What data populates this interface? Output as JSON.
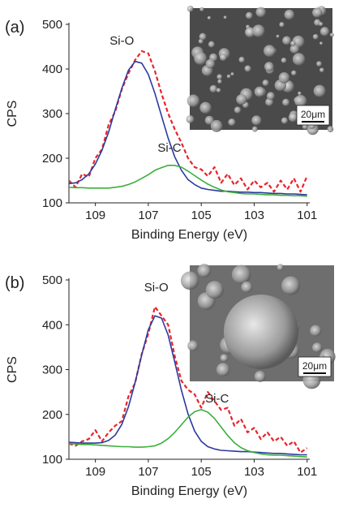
{
  "chart_data": [
    {
      "type": "line",
      "panel_label": "(a)",
      "x_label": "Binding Energy (eV)",
      "y_label": "CPS",
      "xlim": [
        110,
        100.9
      ],
      "ylim": [
        100,
        500
      ],
      "xticks": [
        109,
        107,
        105,
        103,
        101
      ],
      "yticks": [
        100,
        200,
        300,
        400,
        500
      ],
      "x": [
        110,
        109.75,
        109.5,
        109.25,
        109,
        108.75,
        108.5,
        108.25,
        108,
        107.75,
        107.5,
        107.25,
        107,
        106.75,
        106.5,
        106.25,
        106,
        105.75,
        105.5,
        105.25,
        105,
        104.75,
        104.5,
        104.25,
        104,
        103.75,
        103.5,
        103.25,
        103,
        102.75,
        102.5,
        102.25,
        102,
        101.75,
        101.5,
        101.25,
        101
      ],
      "series": [
        {
          "color": "#e8242a",
          "line_style": "dashed",
          "values": [
            150,
            135,
            165,
            158,
            200,
            220,
            275,
            305,
            355,
            390,
            420,
            440,
            435,
            395,
            345,
            300,
            265,
            235,
            200,
            180,
            175,
            160,
            180,
            145,
            165,
            140,
            155,
            130,
            150,
            135,
            145,
            125,
            150,
            130,
            155,
            125,
            160
          ]
        },
        {
          "color": "#2b3a9e",
          "line_style": "solid",
          "values": [
            143,
            145,
            152,
            165,
            187,
            218,
            259,
            309,
            357,
            397,
            417,
            413,
            388,
            345,
            295,
            245,
            203,
            173,
            152,
            141,
            133,
            130,
            128,
            126,
            126,
            125,
            124,
            124,
            123,
            123,
            122,
            121,
            121,
            120,
            120,
            119,
            118
          ]
        },
        {
          "color": "#3cae3c",
          "line_style": "solid",
          "values": [
            135,
            134,
            134,
            133,
            133,
            133,
            133,
            135,
            137,
            141,
            147,
            155,
            163,
            173,
            179,
            184,
            184,
            180,
            171,
            161,
            151,
            142,
            135,
            129,
            125,
            123,
            121,
            120,
            120,
            119,
            118,
            118,
            117,
            117,
            116,
            116,
            115
          ]
        }
      ],
      "annotations": [
        "Si-O",
        "Si-C"
      ],
      "inset_scale_label": "20μm"
    },
    {
      "type": "line",
      "panel_label": "(b)",
      "x_label": "Binding Energy (eV)",
      "y_label": "CPS",
      "xlim": [
        110,
        100.9
      ],
      "ylim": [
        100,
        500
      ],
      "xticks": [
        109,
        107,
        105,
        103,
        101
      ],
      "yticks": [
        100,
        200,
        300,
        400,
        500
      ],
      "x": [
        110,
        109.75,
        109.5,
        109.25,
        109,
        108.75,
        108.5,
        108.25,
        108,
        107.75,
        107.5,
        107.25,
        107,
        106.75,
        106.5,
        106.25,
        106,
        105.75,
        105.5,
        105.25,
        105,
        104.75,
        104.5,
        104.25,
        104,
        103.75,
        103.5,
        103.25,
        103,
        102.75,
        102.5,
        102.25,
        102,
        101.75,
        101.5,
        101.25,
        101
      ],
      "series": [
        {
          "color": "#e8242a",
          "line_style": "dashed",
          "values": [
            135,
            130,
            140,
            145,
            165,
            140,
            160,
            175,
            185,
            240,
            270,
            335,
            380,
            440,
            420,
            400,
            330,
            275,
            255,
            245,
            215,
            250,
            230,
            210,
            215,
            175,
            190,
            160,
            170,
            145,
            160,
            140,
            150,
            130,
            140,
            115,
            125
          ]
        },
        {
          "color": "#2b3a9e",
          "line_style": "solid",
          "values": [
            138,
            137,
            136,
            136,
            136,
            137,
            142,
            154,
            178,
            217,
            271,
            333,
            389,
            420,
            415,
            377,
            317,
            254,
            201,
            163,
            140,
            128,
            123,
            120,
            119,
            118,
            117,
            117,
            116,
            115,
            114,
            113,
            113,
            112,
            111,
            110,
            110
          ]
        },
        {
          "color": "#3cae3c",
          "line_style": "solid",
          "values": [
            135,
            134,
            133,
            133,
            132,
            131,
            130,
            129,
            128,
            128,
            127,
            127,
            128,
            130,
            136,
            146,
            160,
            177,
            194,
            206,
            211,
            205,
            191,
            172,
            153,
            137,
            126,
            119,
            115,
            112,
            110,
            109,
            109,
            108,
            107,
            106,
            105
          ]
        }
      ],
      "annotations": [
        "Si-O",
        "Si-C"
      ],
      "inset_scale_label": "20μm"
    }
  ]
}
